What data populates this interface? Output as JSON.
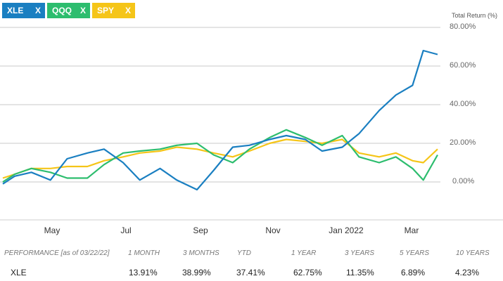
{
  "chips": [
    {
      "label": "XLE",
      "close": "X",
      "color": "#1a7fc1"
    },
    {
      "label": "QQQ",
      "close": "X",
      "color": "#2dbd6e"
    },
    {
      "label": "SPY",
      "close": "X",
      "color": "#f5c518"
    }
  ],
  "chart_data": {
    "type": "line",
    "ylabel": "Total Return (%)",
    "ylim": [
      -20,
      85
    ],
    "y_ticks": [
      "80.00%",
      "60.00%",
      "40.00%",
      "20.00%",
      "0.00%"
    ],
    "x_ticks": [
      "May",
      "Jul",
      "Sep",
      "Nov",
      "Jan 2022",
      "Mar"
    ],
    "grid": true,
    "x": [
      "2021-03-22",
      "2021-04-01",
      "2021-04-15",
      "2021-05-01",
      "2021-05-15",
      "2021-06-01",
      "2021-06-15",
      "2021-07-01",
      "2021-07-15",
      "2021-08-01",
      "2021-08-15",
      "2021-09-01",
      "2021-09-15",
      "2021-10-01",
      "2021-10-15",
      "2021-11-01",
      "2021-11-15",
      "2021-12-01",
      "2021-12-15",
      "2022-01-01",
      "2022-01-15",
      "2022-02-01",
      "2022-02-15",
      "2022-03-01",
      "2022-03-10",
      "2022-03-22"
    ],
    "series": [
      {
        "name": "XLE",
        "color": "#1a7fc1",
        "values": [
          -1,
          3,
          5,
          1,
          12,
          15,
          17,
          10,
          1,
          7,
          1,
          -4,
          6,
          18,
          19,
          22,
          24,
          22,
          16,
          18,
          25,
          37,
          45,
          50,
          68,
          66
        ]
      },
      {
        "name": "QQQ",
        "color": "#2dbd6e",
        "values": [
          0,
          4,
          7,
          5,
          2,
          2,
          9,
          15,
          16,
          17,
          19,
          20,
          14,
          10,
          17,
          23,
          27,
          23,
          19,
          24,
          13,
          10,
          13,
          7,
          1,
          14
        ]
      },
      {
        "name": "SPY",
        "color": "#f5c518",
        "values": [
          2,
          4,
          7,
          7,
          8,
          8,
          11,
          13,
          15,
          16,
          18,
          17,
          15,
          13,
          16,
          20,
          22,
          21,
          20,
          22,
          15,
          13,
          15,
          11,
          10,
          17
        ]
      }
    ]
  },
  "performance": {
    "header_label": "PERFORMANCE [as of 03/22/22]",
    "columns": [
      "1 MONTH",
      "3 MONTHS",
      "YTD",
      "1 YEAR",
      "3 YEARS",
      "5 YEARS",
      "10 YEARS"
    ],
    "row": {
      "ticker": "XLE",
      "values": [
        "13.91%",
        "38.99%",
        "37.41%",
        "62.75%",
        "11.35%",
        "6.89%",
        "4.23%"
      ]
    }
  }
}
